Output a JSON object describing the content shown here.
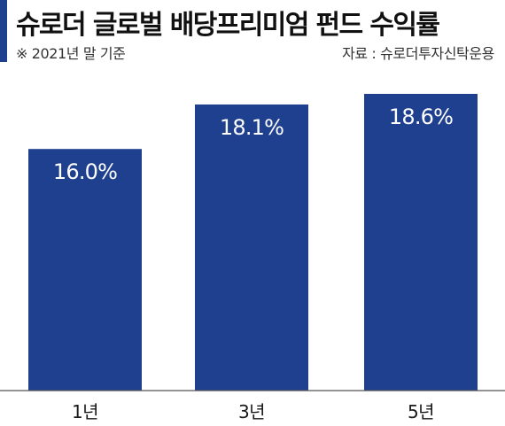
{
  "header": {
    "title": "슈로더 글로벌 배당프리미엄 펀드 수익률",
    "basis_note": "※ 2021년 말 기준",
    "source": "자료 : 슈로더투자신탁운용"
  },
  "colors": {
    "accent": "#1f3f8f",
    "bar": "#1f3f8f",
    "bar_label": "#ffffff"
  },
  "chart_data": {
    "type": "bar",
    "title": "슈로더 글로벌 배당프리미엄 펀드 수익률",
    "categories": [
      "1년",
      "3년",
      "5년"
    ],
    "values": [
      16.0,
      18.1,
      18.6
    ],
    "value_labels": [
      "16.0%",
      "18.1%",
      "18.6%"
    ],
    "unit": "%",
    "xlabel": "",
    "ylabel": "",
    "ylim": [
      0,
      18.6
    ],
    "grid": false,
    "legend": "none"
  }
}
